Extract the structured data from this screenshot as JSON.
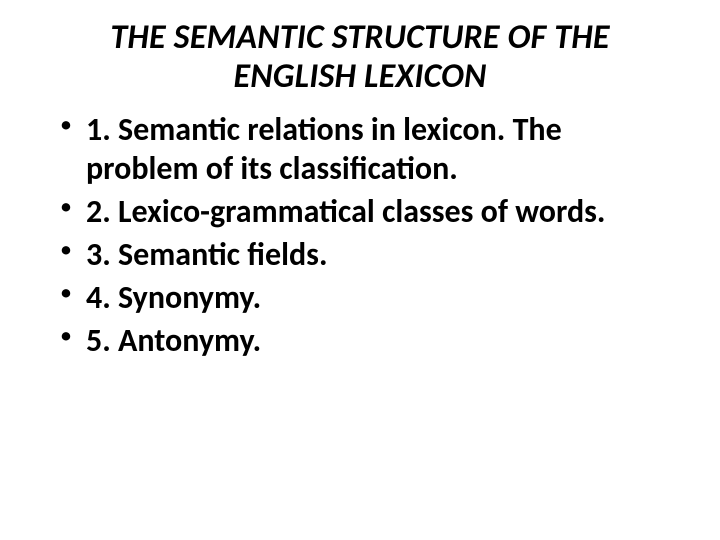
{
  "title_line1": "THE SEMANTIC STRUCTURE OF THE",
  "title_line2": "ENGLISH LEXICON",
  "items": [
    "1. Semantic relations in lexicon. The problem of its classification.",
    "2. Lexico-grammatical classes of words.",
    "3. Semantic fields.",
    "4. Synonymy.",
    "5. Antonymy."
  ],
  "colors": {
    "background": "#ffffff",
    "text": "#000000"
  },
  "typography": {
    "title_fontsize": 34,
    "title_weight": 700,
    "title_style": "italic",
    "body_fontsize": 32,
    "body_weight": 700,
    "font_family": "Calibri"
  }
}
